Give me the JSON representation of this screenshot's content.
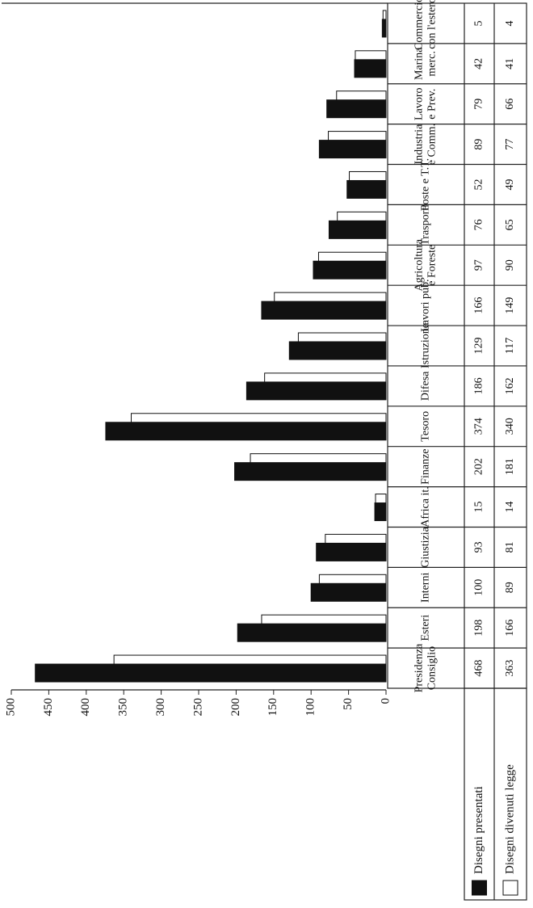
{
  "chart_data": {
    "type": "bar",
    "categories": [
      [
        "Presidenza",
        "Consiglio"
      ],
      [
        "Esteri"
      ],
      [
        "Interni"
      ],
      [
        "Giustizia"
      ],
      [
        "Africa it."
      ],
      [
        "Finanze"
      ],
      [
        "Tesoro"
      ],
      [
        "Difesa"
      ],
      [
        "Istruzione"
      ],
      [
        "Lavori pub."
      ],
      [
        "Agricoltura",
        "e Foreste"
      ],
      [
        "Trasporti"
      ],
      [
        "Poste e T.T."
      ],
      [
        "Industria",
        "e Comm."
      ],
      [
        "Lavoro",
        "e Prev."
      ],
      [
        "Marina",
        "merc."
      ],
      [
        "Commercio",
        "con l'estero"
      ]
    ],
    "series": [
      {
        "name": "Disegni presentati",
        "color": "#111111",
        "values": [
          468,
          198,
          100,
          93,
          15,
          202,
          374,
          186,
          129,
          166,
          97,
          76,
          52,
          89,
          79,
          42,
          5
        ]
      },
      {
        "name": "Disegni divenuti legge",
        "color": "#ffffff",
        "values": [
          363,
          166,
          89,
          81,
          14,
          181,
          340,
          162,
          117,
          149,
          90,
          65,
          49,
          77,
          66,
          41,
          4
        ]
      }
    ],
    "ylim": [
      0,
      500
    ],
    "yticks": [
      0,
      50,
      100,
      150,
      200,
      250,
      300,
      350,
      400,
      450,
      500
    ]
  }
}
